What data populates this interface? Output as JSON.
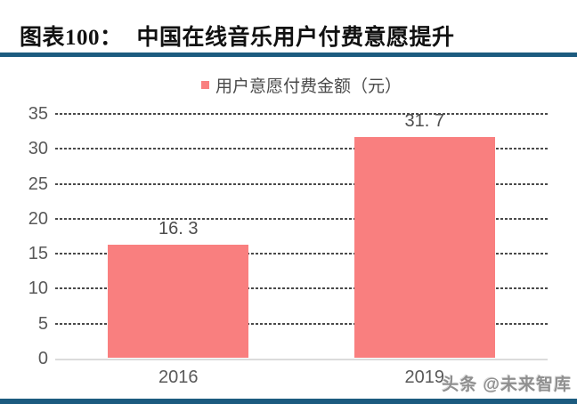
{
  "header": {
    "figure_label": "图表100：",
    "figure_title": "中国在线音乐用户付费意愿提升"
  },
  "watermark": "头条 @未来智库",
  "colors": {
    "bar": "#F97F7F",
    "accent_rule": "#1C5B7F",
    "grid": "#4A4A4A",
    "axis": "#DBDBDB",
    "tick_label": "#595959",
    "value_label": "#4D4D4D"
  },
  "chart_data": {
    "type": "bar",
    "title": "中国在线音乐用户付费意愿提升",
    "categories": [
      "2016",
      "2019"
    ],
    "series": [
      {
        "name": "用户意愿付费金额（元）",
        "values": [
          16.3,
          31.7
        ]
      }
    ],
    "value_labels": [
      "16. 3",
      "31. 7"
    ],
    "legend": {
      "label": "用户意愿付费金额（元）",
      "position": "top-center",
      "color": "#F97F7F"
    },
    "xlabel": "",
    "ylabel": "",
    "ylim": [
      0,
      35
    ],
    "yticks": [
      0,
      5,
      10,
      15,
      20,
      25,
      30,
      35
    ],
    "grid": "horizontal-dashed"
  }
}
